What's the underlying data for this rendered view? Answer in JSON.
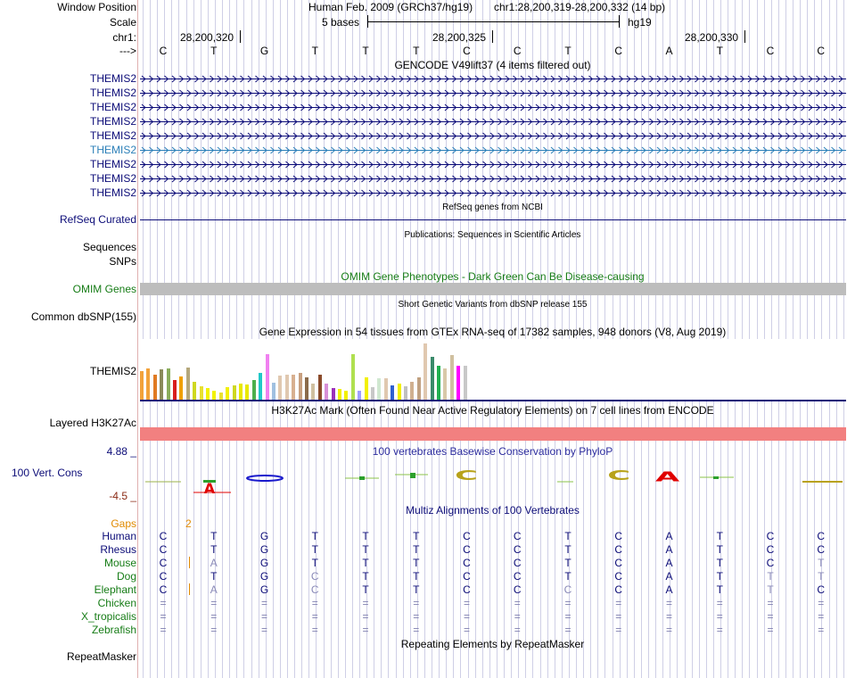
{
  "header": {
    "window_position_label": "Window Position",
    "assembly": "Human Feb. 2009 (GRCh37/hg19)",
    "position": "chr1:28,200,319-28,200,332 (14 bp)",
    "scale_label": "Scale",
    "scale_value": "5 bases",
    "scale_db": "hg19",
    "chr_label": "chr1:",
    "ticks": [
      "28,200,320",
      "28,200,325",
      "28,200,330"
    ],
    "strand_label": "--->"
  },
  "bases": [
    "C",
    "T",
    "G",
    "T",
    "T",
    "T",
    "C",
    "C",
    "T",
    "C",
    "A",
    "T",
    "C",
    "C"
  ],
  "gencode": {
    "title": "GENCODE V49lift37 (4 items filtered out)",
    "items": [
      "THEMIS2",
      "THEMIS2",
      "THEMIS2",
      "THEMIS2",
      "THEMIS2",
      "THEMIS2",
      "THEMIS2",
      "THEMIS2",
      "THEMIS2"
    ],
    "highlighted_index": 5
  },
  "refseq": {
    "title": "RefSeq genes from NCBI",
    "label": "RefSeq Curated"
  },
  "publications": {
    "title": "Publications: Sequences in Scientific Articles",
    "label1": "Sequences",
    "label2": "SNPs"
  },
  "omim": {
    "title": "OMIM Gene Phenotypes - Dark Green Can Be Disease-causing",
    "label": "OMIM Genes"
  },
  "dbsnp": {
    "title": "Short Genetic Variants from dbSNP release 155",
    "label": "Common dbSNP(155)"
  },
  "gtex": {
    "title": "Gene Expression in 54 tissues from GTEx RNA-seq of 17382 samples, 948 donors (V8, Aug 2019)",
    "label": "THEMIS2"
  },
  "h3k27": {
    "title": "H3K27Ac Mark (Often Found Near Active Regulatory Elements) on 7 cell lines from ENCODE",
    "label": "Layered H3K27Ac"
  },
  "phylop": {
    "title": "100 vertebrates Basewise Conservation by PhyloP",
    "label": "100 Vert. Cons",
    "max": "4.88 _",
    "min": "-4.5 _"
  },
  "multiz": {
    "title": "Multiz Alignments of 100 Vertebrates",
    "gaps_label": "Gaps",
    "gaps_value": "2",
    "species": [
      {
        "name": "Human",
        "color": "#0c0c78",
        "bases": [
          "C",
          "T",
          "G",
          "T",
          "T",
          "T",
          "C",
          "C",
          "T",
          "C",
          "A",
          "T",
          "C",
          "C"
        ]
      },
      {
        "name": "Rhesus",
        "color": "#0c0c78",
        "bases": [
          "C",
          "T",
          "G",
          "T",
          "T",
          "T",
          "C",
          "C",
          "T",
          "C",
          "A",
          "T",
          "C",
          "C"
        ]
      },
      {
        "name": "Mouse",
        "color": "#167c16",
        "bases": [
          "C",
          "A",
          "G",
          "T",
          "T",
          "T",
          "C",
          "C",
          "T",
          "C",
          "A",
          "T",
          "C",
          "T"
        ]
      },
      {
        "name": "Dog",
        "color": "#167c16",
        "bases": [
          "C",
          "T",
          "G",
          "C",
          "T",
          "T",
          "C",
          "C",
          "T",
          "C",
          "A",
          "T",
          "T",
          "T"
        ]
      },
      {
        "name": "Elephant",
        "color": "#167c16",
        "bases": [
          "C",
          "A",
          "G",
          "C",
          "T",
          "T",
          "C",
          "C",
          "C",
          "C",
          "A",
          "T",
          "T",
          "C"
        ]
      },
      {
        "name": "Chicken",
        "color": "#167c16",
        "bases": [
          "=",
          "=",
          "=",
          "=",
          "=",
          "=",
          "=",
          "=",
          "=",
          "=",
          "=",
          "=",
          "=",
          "="
        ]
      },
      {
        "name": "X_tropicalis",
        "color": "#167c16",
        "bases": [
          "=",
          "=",
          "=",
          "=",
          "=",
          "=",
          "=",
          "=",
          "=",
          "=",
          "=",
          "=",
          "=",
          "="
        ]
      },
      {
        "name": "Zebrafish",
        "color": "#167c16",
        "bases": [
          "=",
          "=",
          "=",
          "=",
          "=",
          "=",
          "=",
          "=",
          "=",
          "=",
          "=",
          "=",
          "=",
          "="
        ]
      }
    ]
  },
  "repeatmasker": {
    "title": "Repeating Elements by RepeatMasker",
    "label": "RepeatMasker"
  },
  "colors": {
    "track_label": "#0c0c78",
    "omim_green": "#167c16",
    "h3k27_band": "#f28080",
    "phylop_title": "#2c2c9e"
  }
}
